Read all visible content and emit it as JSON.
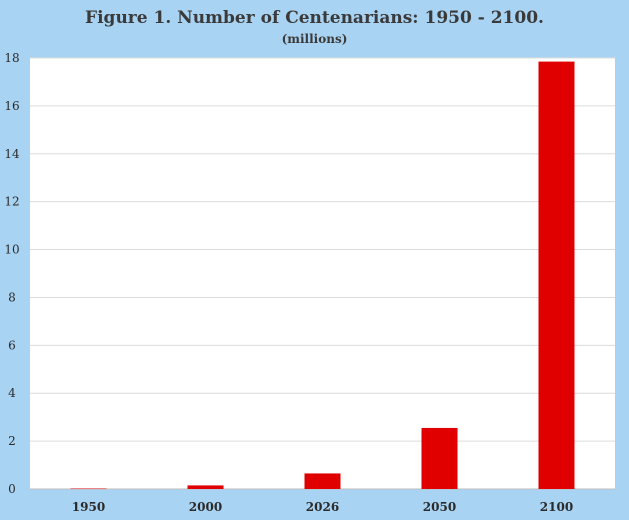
{
  "chart_data": {
    "type": "bar",
    "title": "Figure 1. Number of Centenarians: 1950 - 2100.",
    "subtitle": "(millions)",
    "categories": [
      "1950",
      "2000",
      "2026",
      "2050",
      "2100"
    ],
    "values": [
      0.02,
      0.15,
      0.65,
      2.55,
      17.85
    ],
    "xlabel": "",
    "ylabel": "",
    "ylim": [
      0,
      18
    ],
    "yticks": [
      0,
      2,
      4,
      6,
      8,
      10,
      12,
      14,
      16,
      18
    ],
    "grid": true,
    "legend": "none",
    "bar_color": "#e00000",
    "background_color": "#a9d3f2",
    "plot_background_color": "#ffffff"
  }
}
